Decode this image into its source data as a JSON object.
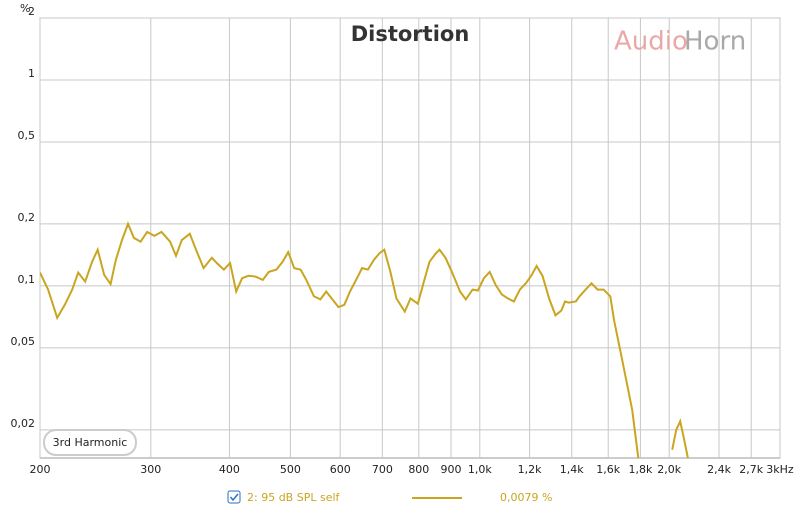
{
  "chart_data": {
    "type": "line",
    "title": "Distortion",
    "ylabel": "%",
    "watermark": [
      "Audio",
      "Horn"
    ],
    "badge": "3rd Harmonic",
    "legend_value": "0,0079 %",
    "xscale": "log",
    "yscale": "log",
    "grid": true,
    "xlim": [
      200,
      3000
    ],
    "ylim": [
      0.0146,
      2
    ],
    "xticks": [
      200,
      300,
      400,
      500,
      600,
      700,
      800,
      900,
      {
        "value": 1000,
        "label": "1,0k"
      },
      {
        "value": 1200,
        "label": "1,2k"
      },
      {
        "value": 1400,
        "label": "1,4k"
      },
      {
        "value": 1600,
        "label": "1,6k"
      },
      {
        "value": 1800,
        "label": "1,8k"
      },
      {
        "value": 2000,
        "label": "2,0k"
      },
      {
        "value": 2400,
        "label": "2,4k"
      },
      {
        "value": 2700,
        "label": "2,7k"
      },
      {
        "value": 3000,
        "label": "3kHz"
      }
    ],
    "yticks": [
      2,
      1,
      {
        "value": 0.5,
        "label": "0,5"
      },
      {
        "value": 0.2,
        "label": "0,2"
      },
      {
        "value": 0.1,
        "label": "0,1"
      },
      {
        "value": 0.05,
        "label": "0,05"
      },
      {
        "value": 0.02,
        "label": "0,02"
      }
    ],
    "x": [
      200,
      206,
      213,
      219,
      225,
      230,
      236,
      242,
      247,
      253,
      259,
      264,
      270,
      276,
      282,
      289,
      296,
      304,
      312,
      322,
      329,
      336,
      346,
      354,
      364,
      375,
      383,
      392,
      401,
      410,
      419,
      429,
      440,
      452,
      462,
      475,
      486,
      496,
      507,
      519,
      530,
      545,
      558,
      570,
      583,
      596,
      609,
      622,
      636,
      650,
      664,
      679,
      694,
      705,
      721,
      737,
      760,
      776,
      797,
      815,
      832,
      850,
      863,
      882,
      903,
      930,
      950,
      974,
      993,
      1015,
      1037,
      1060,
      1084,
      1108,
      1133,
      1158,
      1184,
      1209,
      1231,
      1258,
      1290,
      1319,
      1348,
      1366,
      1384,
      1421,
      1441,
      1473,
      1505,
      1539,
      1573,
      1612,
      1635,
      1671,
      1709,
      1747,
      1786,
      1900,
      2022,
      2052,
      2082,
      2112,
      2142
    ],
    "series": [
      {
        "name": "2: 95 dB SPL self",
        "color": "#c9a520",
        "values": [
          0.116,
          0.096,
          0.07,
          0.081,
          0.096,
          0.116,
          0.105,
          0.131,
          0.15,
          0.113,
          0.102,
          0.134,
          0.167,
          0.2,
          0.171,
          0.164,
          0.183,
          0.175,
          0.183,
          0.164,
          0.14,
          0.167,
          0.179,
          0.15,
          0.122,
          0.137,
          0.128,
          0.12,
          0.129,
          0.094,
          0.109,
          0.112,
          0.111,
          0.107,
          0.117,
          0.12,
          0.131,
          0.146,
          0.122,
          0.12,
          0.107,
          0.089,
          0.086,
          0.094,
          0.086,
          0.079,
          0.081,
          0.094,
          0.107,
          0.122,
          0.12,
          0.134,
          0.145,
          0.15,
          0.117,
          0.087,
          0.075,
          0.087,
          0.082,
          0.105,
          0.131,
          0.143,
          0.15,
          0.137,
          0.117,
          0.094,
          0.086,
          0.096,
          0.095,
          0.109,
          0.117,
          0.101,
          0.091,
          0.087,
          0.084,
          0.096,
          0.103,
          0.113,
          0.125,
          0.112,
          0.086,
          0.072,
          0.076,
          0.084,
          0.083,
          0.084,
          0.089,
          0.096,
          0.103,
          0.096,
          0.096,
          0.089,
          0.068,
          0.049,
          0.035,
          0.025,
          0.0146,
          null,
          0.016,
          0.02,
          0.022,
          0.018,
          0.0146
        ]
      }
    ]
  }
}
